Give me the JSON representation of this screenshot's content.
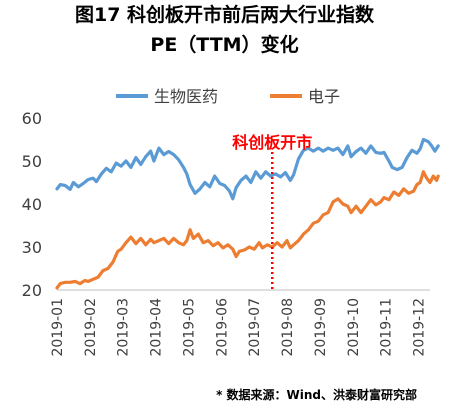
{
  "title_line1": "图17  科创板开市前后两大行业指数",
  "title_line2": "PE（TTM）变化",
  "source": "* 数据来源：Wind、洪泰财富研究部",
  "chart_data": {
    "type": "line",
    "ylim": [
      20,
      60
    ],
    "yticks": [
      20,
      30,
      40,
      50,
      60
    ],
    "xticks": [
      "2019-01",
      "2019-02",
      "2019-03",
      "2019-04",
      "2019-05",
      "2019-06",
      "2019-07",
      "2019-08",
      "2019-09",
      "2019-10",
      "2019-11",
      "2019-12"
    ],
    "legend_position": "top",
    "annotation": {
      "label": "科创板开市",
      "at_month": 6.55,
      "color": "#ff0000",
      "style": "dotted"
    },
    "grid": false,
    "series": [
      {
        "name": "生物医药",
        "color": "#5b9bd5",
        "points": [
          [
            0.0,
            43.5
          ],
          [
            0.1,
            44.5
          ],
          [
            0.25,
            44.3
          ],
          [
            0.4,
            43.4
          ],
          [
            0.5,
            45.0
          ],
          [
            0.65,
            44.0
          ],
          [
            0.8,
            44.8
          ],
          [
            0.95,
            45.7
          ],
          [
            1.1,
            46.0
          ],
          [
            1.2,
            45.2
          ],
          [
            1.35,
            47.0
          ],
          [
            1.5,
            48.3
          ],
          [
            1.65,
            47.5
          ],
          [
            1.8,
            49.5
          ],
          [
            1.95,
            48.8
          ],
          [
            2.1,
            50.0
          ],
          [
            2.25,
            48.5
          ],
          [
            2.4,
            50.8
          ],
          [
            2.55,
            49.2
          ],
          [
            2.7,
            51.0
          ],
          [
            2.85,
            52.3
          ],
          [
            2.95,
            50.0
          ],
          [
            3.1,
            53.0
          ],
          [
            3.25,
            51.5
          ],
          [
            3.4,
            52.2
          ],
          [
            3.55,
            51.5
          ],
          [
            3.7,
            50.3
          ],
          [
            3.85,
            48.5
          ],
          [
            3.95,
            47.0
          ],
          [
            4.05,
            44.5
          ],
          [
            4.2,
            42.5
          ],
          [
            4.35,
            43.5
          ],
          [
            4.5,
            45.0
          ],
          [
            4.65,
            44.0
          ],
          [
            4.8,
            46.5
          ],
          [
            4.95,
            44.8
          ],
          [
            5.1,
            44.3
          ],
          [
            5.25,
            43.0
          ],
          [
            5.35,
            41.2
          ],
          [
            5.45,
            43.8
          ],
          [
            5.6,
            45.5
          ],
          [
            5.75,
            46.5
          ],
          [
            5.9,
            45.0
          ],
          [
            6.05,
            47.5
          ],
          [
            6.2,
            46.0
          ],
          [
            6.35,
            47.5
          ],
          [
            6.5,
            46.5
          ],
          [
            6.65,
            47.0
          ],
          [
            6.8,
            46.3
          ],
          [
            6.95,
            47.3
          ],
          [
            7.1,
            45.5
          ],
          [
            7.2,
            46.8
          ],
          [
            7.35,
            50.5
          ],
          [
            7.5,
            52.5
          ],
          [
            7.65,
            53.0
          ],
          [
            7.8,
            52.3
          ],
          [
            7.95,
            53.0
          ],
          [
            8.1,
            52.3
          ],
          [
            8.25,
            53.0
          ],
          [
            8.4,
            52.5
          ],
          [
            8.55,
            53.0
          ],
          [
            8.7,
            51.5
          ],
          [
            8.85,
            53.5
          ],
          [
            8.95,
            51.0
          ],
          [
            9.1,
            52.2
          ],
          [
            9.25,
            53.0
          ],
          [
            9.4,
            51.8
          ],
          [
            9.55,
            53.5
          ],
          [
            9.7,
            52.0
          ],
          [
            9.85,
            51.8
          ],
          [
            9.95,
            52.0
          ],
          [
            10.1,
            50.0
          ],
          [
            10.2,
            48.5
          ],
          [
            10.35,
            48.0
          ],
          [
            10.5,
            48.5
          ],
          [
            10.65,
            50.8
          ],
          [
            10.8,
            52.5
          ],
          [
            10.95,
            51.8
          ],
          [
            11.05,
            52.8
          ],
          [
            11.15,
            55.0
          ],
          [
            11.3,
            54.5
          ],
          [
            11.4,
            53.5
          ],
          [
            11.5,
            52.3
          ],
          [
            11.6,
            53.5
          ]
        ]
      },
      {
        "name": "电子",
        "color": "#ed7d31",
        "points": [
          [
            0.0,
            20.5
          ],
          [
            0.1,
            21.5
          ],
          [
            0.25,
            21.8
          ],
          [
            0.4,
            21.8
          ],
          [
            0.55,
            22.0
          ],
          [
            0.7,
            21.5
          ],
          [
            0.85,
            22.2
          ],
          [
            0.95,
            22.0
          ],
          [
            1.1,
            22.5
          ],
          [
            1.25,
            23.0
          ],
          [
            1.4,
            24.5
          ],
          [
            1.55,
            25.0
          ],
          [
            1.7,
            26.5
          ],
          [
            1.85,
            29.0
          ],
          [
            1.95,
            29.5
          ],
          [
            2.1,
            31.0
          ],
          [
            2.25,
            32.3
          ],
          [
            2.4,
            30.8
          ],
          [
            2.55,
            32.0
          ],
          [
            2.7,
            30.5
          ],
          [
            2.85,
            31.8
          ],
          [
            2.95,
            31.0
          ],
          [
            3.1,
            31.5
          ],
          [
            3.25,
            32.0
          ],
          [
            3.4,
            30.8
          ],
          [
            3.55,
            32.0
          ],
          [
            3.7,
            31.0
          ],
          [
            3.85,
            30.5
          ],
          [
            3.95,
            31.5
          ],
          [
            4.05,
            34.0
          ],
          [
            4.15,
            32.0
          ],
          [
            4.3,
            33.0
          ],
          [
            4.45,
            31.0
          ],
          [
            4.6,
            31.5
          ],
          [
            4.75,
            30.3
          ],
          [
            4.9,
            31.0
          ],
          [
            5.05,
            29.8
          ],
          [
            5.2,
            30.5
          ],
          [
            5.35,
            29.5
          ],
          [
            5.45,
            27.8
          ],
          [
            5.55,
            29.0
          ],
          [
            5.7,
            29.3
          ],
          [
            5.85,
            30.0
          ],
          [
            6.0,
            29.5
          ],
          [
            6.15,
            31.0
          ],
          [
            6.25,
            29.8
          ],
          [
            6.4,
            30.5
          ],
          [
            6.55,
            30.0
          ],
          [
            6.7,
            31.0
          ],
          [
            6.85,
            30.0
          ],
          [
            7.0,
            31.5
          ],
          [
            7.1,
            29.8
          ],
          [
            7.2,
            30.5
          ],
          [
            7.35,
            31.5
          ],
          [
            7.5,
            33.0
          ],
          [
            7.65,
            34.0
          ],
          [
            7.8,
            35.5
          ],
          [
            7.95,
            36.0
          ],
          [
            8.1,
            37.5
          ],
          [
            8.25,
            38.0
          ],
          [
            8.4,
            40.5
          ],
          [
            8.55,
            41.2
          ],
          [
            8.7,
            40.0
          ],
          [
            8.85,
            39.5
          ],
          [
            8.95,
            38.0
          ],
          [
            9.1,
            39.5
          ],
          [
            9.25,
            38.0
          ],
          [
            9.4,
            39.5
          ],
          [
            9.55,
            41.0
          ],
          [
            9.7,
            39.8
          ],
          [
            9.85,
            40.5
          ],
          [
            9.95,
            41.5
          ],
          [
            10.1,
            41.0
          ],
          [
            10.25,
            42.8
          ],
          [
            10.4,
            42.0
          ],
          [
            10.55,
            43.5
          ],
          [
            10.7,
            42.5
          ],
          [
            10.85,
            43.0
          ],
          [
            10.95,
            44.5
          ],
          [
            11.05,
            45.0
          ],
          [
            11.15,
            47.5
          ],
          [
            11.25,
            46.0
          ],
          [
            11.35,
            45.0
          ],
          [
            11.45,
            46.5
          ],
          [
            11.55,
            45.5
          ],
          [
            11.6,
            46.5
          ]
        ]
      }
    ]
  }
}
